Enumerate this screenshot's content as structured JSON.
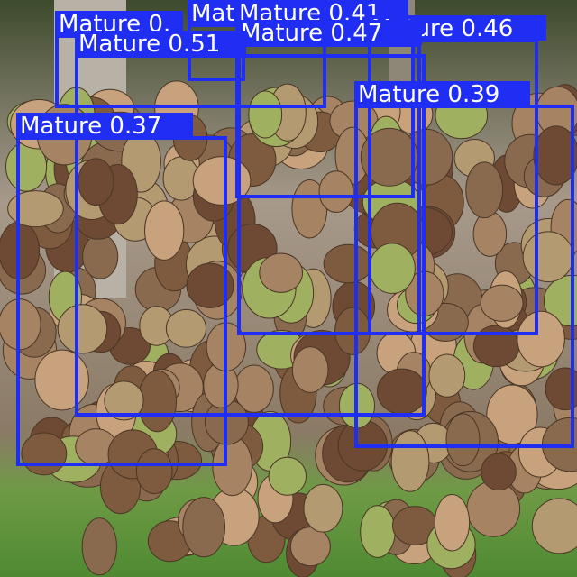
{
  "detections": [
    {
      "label": "Mature 0."
    },
    {
      "label": "Mat"
    },
    {
      "label": "Mature 0.41"
    },
    {
      "label": "Mature 0.46"
    },
    {
      "label": "Mature 0.47"
    },
    {
      "label": "Mature 0.51"
    },
    {
      "label": "Mature 0.39"
    },
    {
      "label": "Mature 0.37"
    }
  ]
}
